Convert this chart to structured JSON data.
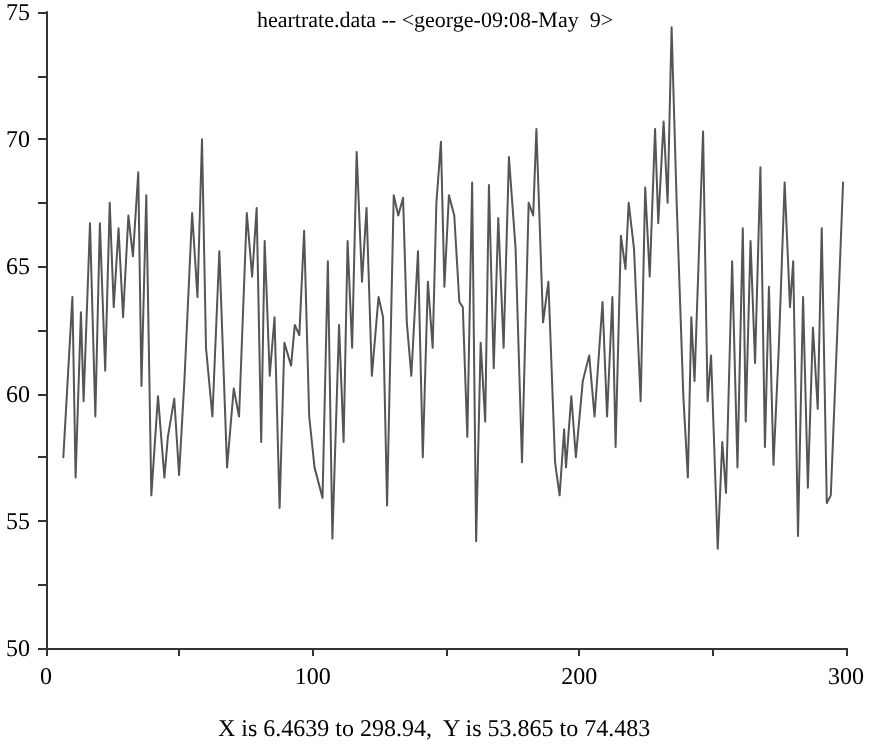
{
  "chart_data": {
    "type": "line",
    "title": "heartrate.data -- <george-09:08-May  9>",
    "annotations": [
      "X is 6.4639 to 298.94,  Y is 53.865 to 74.483"
    ],
    "x": [
      6.5,
      9.9,
      11.1,
      13.1,
      14.1,
      16.5,
      18.5,
      20.2,
      22.2,
      23.9,
      25.4,
      27.2,
      28.9,
      30.9,
      32.6,
      34.6,
      35.8,
      37.6,
      39.5,
      42.0,
      44.4,
      45.7,
      48.1,
      49.9,
      51.9,
      54.8,
      56.8,
      58.5,
      60.0,
      62.4,
      65.0,
      67.9,
      70.4,
      72.4,
      75.3,
      77.3,
      79.0,
      80.7,
      82.0,
      83.9,
      85.7,
      87.6,
      89.4,
      91.9,
      93.3,
      95.0,
      96.8,
      98.7,
      100.7,
      103.7,
      105.7,
      107.4,
      109.9,
      111.6,
      113.1,
      114.8,
      116.5,
      118.5,
      120.2,
      122.2,
      124.7,
      126.4,
      127.9,
      130.4,
      132.1,
      133.9,
      135.3,
      137.0,
      139.5,
      141.3,
      143.2,
      145.0,
      146.4,
      148.1,
      149.4,
      151.1,
      153.1,
      155.0,
      156.3,
      158.0,
      159.8,
      161.3,
      163.0,
      164.7,
      166.1,
      167.9,
      169.6,
      171.6,
      173.6,
      176.1,
      178.5,
      181.0,
      182.7,
      183.9,
      186.4,
      188.4,
      190.9,
      192.6,
      194.3,
      195.0,
      197.0,
      198.7,
      201.3,
      203.7,
      205.7,
      208.7,
      210.4,
      212.4,
      213.6,
      215.6,
      217.3,
      218.5,
      220.5,
      223.0,
      224.7,
      226.4,
      228.4,
      229.6,
      231.6,
      233.1,
      234.6,
      236.5,
      239.0,
      240.7,
      242.0,
      243.2,
      246.4,
      248.1,
      249.4,
      251.9,
      253.6,
      255.0,
      257.3,
      259.3,
      261.3,
      262.4,
      264.2,
      265.9,
      267.9,
      269.6,
      271.1,
      272.8,
      274.8,
      277.0,
      279.0,
      280.2,
      282.0,
      283.9,
      285.7,
      287.6,
      289.4,
      290.9,
      292.8,
      294.3,
      296.8,
      298.9
    ],
    "series": [
      {
        "color": "#555555",
        "values": [
          57.5,
          63.8,
          56.7,
          63.2,
          59.7,
          66.7,
          59.1,
          66.7,
          60.9,
          67.5,
          63.4,
          66.5,
          63.0,
          67.0,
          65.4,
          68.7,
          60.3,
          67.8,
          56.0,
          59.9,
          56.7,
          58.3,
          59.8,
          56.8,
          60.5,
          67.1,
          63.8,
          70.0,
          61.8,
          59.1,
          65.6,
          57.1,
          60.2,
          59.1,
          67.1,
          64.6,
          67.3,
          58.1,
          66.0,
          60.7,
          63.0,
          55.5,
          62.0,
          61.1,
          62.7,
          62.3,
          66.4,
          59.1,
          57.1,
          55.9,
          65.2,
          54.3,
          62.7,
          58.1,
          66.0,
          61.8,
          69.5,
          64.4,
          67.3,
          60.7,
          63.8,
          63.0,
          55.6,
          67.8,
          67.0,
          67.7,
          62.8,
          60.7,
          65.6,
          57.5,
          64.4,
          61.8,
          67.5,
          69.9,
          64.2,
          67.8,
          67.0,
          63.6,
          63.4,
          58.3,
          68.3,
          54.2,
          62.0,
          58.9,
          68.2,
          61.0,
          66.9,
          61.8,
          69.3,
          65.7,
          57.3,
          67.5,
          67.0,
          70.4,
          62.8,
          64.4,
          57.3,
          56.0,
          58.6,
          57.1,
          59.9,
          57.5,
          60.5,
          61.5,
          59.1,
          63.6,
          59.1,
          63.8,
          57.9,
          66.2,
          64.9,
          67.5,
          65.7,
          59.7,
          68.1,
          64.6,
          70.4,
          66.7,
          70.7,
          67.5,
          74.4,
          67.5,
          59.9,
          56.7,
          63.0,
          60.5,
          70.3,
          59.7,
          61.5,
          53.9,
          58.1,
          56.1,
          65.2,
          57.1,
          66.5,
          58.9,
          66.0,
          61.2,
          68.9,
          57.9,
          64.2,
          57.2,
          61.8,
          68.3,
          63.4,
          65.2,
          54.4,
          63.8,
          56.3,
          62.6,
          59.4,
          66.5,
          55.7,
          56.0,
          62.6,
          68.3
        ]
      }
    ],
    "xlim": [
      0,
      300
    ],
    "xticks": [
      0,
      {
        "value": 50,
        "label": null
      },
      100,
      {
        "value": 150,
        "label": null
      },
      200,
      {
        "value": 250,
        "label": null
      },
      300
    ],
    "ylim": [
      50,
      75
    ],
    "yticks": [
      50,
      {
        "value": 52.5,
        "label": null
      },
      55,
      {
        "value": 57.5,
        "label": null
      },
      60,
      {
        "value": 62.5,
        "label": null
      },
      65,
      {
        "value": 67.5,
        "label": null
      },
      70,
      {
        "value": 72.5,
        "label": null
      },
      75
    ],
    "grid": false,
    "marker": "none",
    "line_style": "solid"
  }
}
